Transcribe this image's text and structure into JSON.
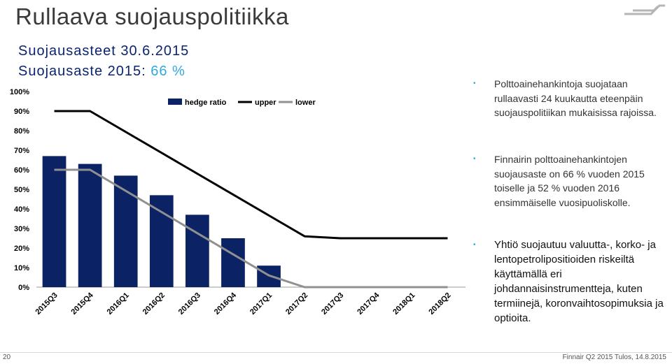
{
  "title": "Rullaava suojauspolitiikka",
  "subtitle_line1": "Suojausasteet 30.6.2015",
  "subtitle_line2_prefix": "Suojausaste 2015: ",
  "subtitle_line2_value": "66 %",
  "colors": {
    "bar": "#0b2265",
    "upper": "#000000",
    "lower": "#909090",
    "accent": "#2fa9de",
    "title": "#3a3a3a"
  },
  "chart_data": {
    "type": "bar",
    "categories": [
      "2015Q3",
      "2015Q4",
      "2016Q1",
      "2016Q2",
      "2016Q3",
      "2016Q4",
      "2017Q1",
      "2017Q2",
      "2017Q3",
      "2017Q4",
      "2018Q1",
      "2018Q2"
    ],
    "series": [
      {
        "name": "hedge ratio",
        "type": "bar",
        "values": [
          67,
          63,
          57,
          47,
          37,
          25,
          11,
          null,
          null,
          null,
          null,
          null
        ]
      },
      {
        "name": "upper",
        "type": "line",
        "values": [
          90,
          90,
          null,
          null,
          null,
          null,
          null,
          26,
          25,
          25,
          25,
          25
        ]
      },
      {
        "name": "lower",
        "type": "line",
        "values": [
          60,
          60,
          null,
          null,
          null,
          null,
          6,
          0,
          0,
          0,
          0,
          0
        ]
      }
    ],
    "yticks": [
      "0%",
      "10%",
      "20%",
      "30%",
      "40%",
      "50%",
      "60%",
      "70%",
      "80%",
      "90%",
      "100%"
    ],
    "ylim": [
      0,
      100
    ],
    "legend_position": "top"
  },
  "bullets": [
    "Polttoainehankintoja suojataan rullaavasti 24 kuukautta eteenpäin suojauspolitiikan mukaisissa rajoissa.",
    "Finnairin polttoainehankintojen suojausaste on 66 % vuoden 2015 toiselle ja 52 % vuoden 2016 ensimmäiselle vuosipuoliskolle.",
    "Yhtiö suojautuu valuutta-, korko- ja lentopetrolipositioiden riskeiltä käyttämällä eri johdannaisinstrumentteja, kuten termiinejä, koronvaihtosopimuksia ja optioita."
  ],
  "bullet_symbol": "•",
  "footer": {
    "page": "20",
    "text": "Finnair Q2 2015 Tulos, 14.8.2015"
  }
}
